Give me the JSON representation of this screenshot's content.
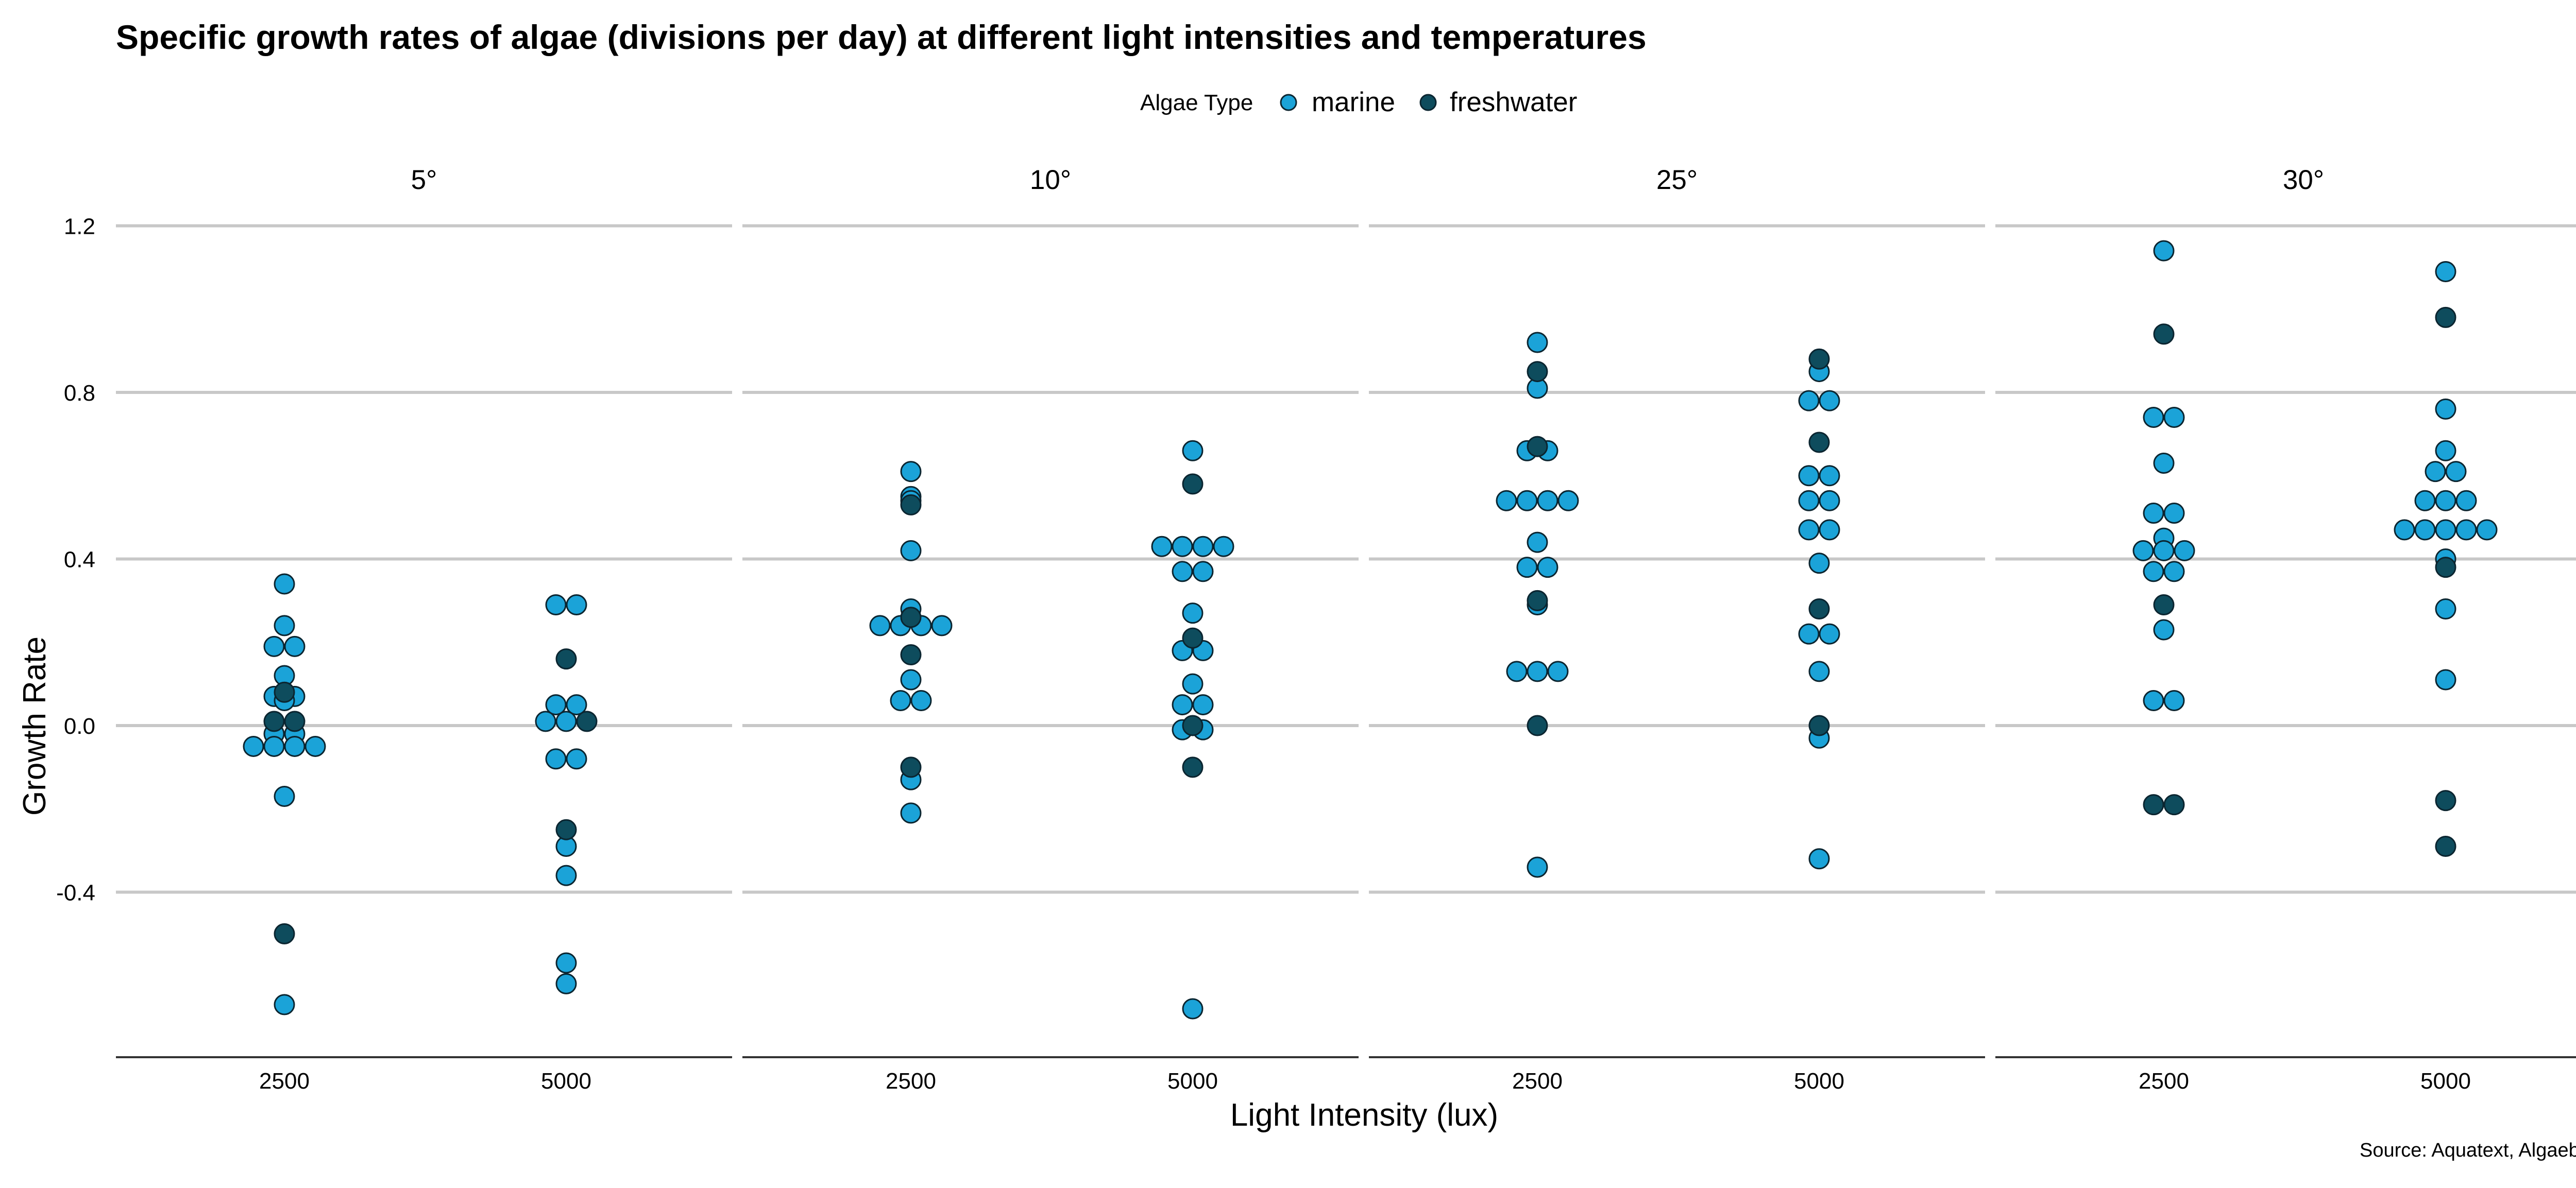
{
  "chart_data": {
    "type": "scatter",
    "title": "Specific growth rates of algae (divisions per day) at different light intensities and temperatures",
    "xlabel": "Light Intensity (lux)",
    "ylabel": "Growth Rate",
    "caption": "Source: Aquatext, Algaebase",
    "legend": {
      "title": "Algae Type",
      "position": "top",
      "entries": [
        "marine",
        "freshwater"
      ],
      "colors": {
        "marine": "#1ba3d8",
        "freshwater": "#0e4c5d"
      }
    },
    "ylim": [
      -0.8,
      1.2
    ],
    "y_ticks": [
      -0.4,
      0.0,
      0.4,
      0.8,
      1.2
    ],
    "y_tick_labels": [
      "-0.4",
      "0.0",
      "0.4",
      "0.8",
      "1.2"
    ],
    "x_categories": [
      "2500",
      "5000"
    ],
    "grid": true,
    "facets": [
      {
        "label": "5°",
        "groups": [
          {
            "x": "2500",
            "marine": [
              0.34,
              0.24,
              0.19,
              0.19,
              0.12,
              0.07,
              0.07,
              0.06,
              -0.02,
              -0.02,
              -0.05,
              -0.05,
              -0.05,
              -0.05,
              -0.17,
              -0.67
            ],
            "freshwater": [
              0.08,
              0.01,
              0.01,
              -0.5
            ]
          },
          {
            "x": "5000",
            "marine": [
              0.29,
              0.29,
              0.05,
              0.05,
              0.01,
              0.01,
              -0.08,
              -0.08,
              -0.29,
              -0.36,
              -0.57,
              -0.62
            ],
            "freshwater": [
              0.16,
              0.01,
              -0.25
            ]
          }
        ]
      },
      {
        "label": "10°",
        "groups": [
          {
            "x": "2500",
            "marine": [
              0.61,
              0.55,
              0.54,
              0.42,
              0.28,
              0.24,
              0.24,
              0.24,
              0.24,
              0.11,
              0.06,
              0.06,
              -0.13,
              -0.21
            ],
            "freshwater": [
              0.53,
              0.26,
              0.17,
              -0.1
            ]
          },
          {
            "x": "5000",
            "marine": [
              0.66,
              0.43,
              0.43,
              0.43,
              0.43,
              0.37,
              0.37,
              0.27,
              0.18,
              0.18,
              0.1,
              0.05,
              0.05,
              -0.01,
              -0.01,
              -0.68
            ],
            "freshwater": [
              0.58,
              0.21,
              0.0,
              -0.1
            ]
          }
        ]
      },
      {
        "label": "25°",
        "groups": [
          {
            "x": "2500",
            "marine": [
              0.92,
              0.81,
              0.66,
              0.66,
              0.54,
              0.54,
              0.54,
              0.54,
              0.44,
              0.38,
              0.38,
              0.29,
              0.13,
              0.13,
              0.13,
              -0.34
            ],
            "freshwater": [
              0.85,
              0.67,
              0.3,
              0.0
            ]
          },
          {
            "x": "5000",
            "marine": [
              0.85,
              0.78,
              0.78,
              0.6,
              0.6,
              0.54,
              0.54,
              0.47,
              0.47,
              0.39,
              0.22,
              0.22,
              0.13,
              -0.03,
              -0.32
            ],
            "freshwater": [
              0.88,
              0.68,
              0.28,
              0.0
            ]
          }
        ]
      },
      {
        "label": "30°",
        "groups": [
          {
            "x": "2500",
            "marine": [
              1.14,
              0.74,
              0.74,
              0.63,
              0.51,
              0.51,
              0.45,
              0.42,
              0.42,
              0.42,
              0.37,
              0.37,
              0.23,
              0.06,
              0.06
            ],
            "freshwater": [
              0.94,
              0.29,
              -0.19,
              -0.19
            ]
          },
          {
            "x": "5000",
            "marine": [
              1.09,
              0.76,
              0.66,
              0.61,
              0.61,
              0.54,
              0.54,
              0.54,
              0.47,
              0.47,
              0.47,
              0.47,
              0.47,
              0.4,
              0.28,
              0.11
            ],
            "freshwater": [
              0.98,
              0.38,
              -0.18,
              -0.29
            ]
          }
        ]
      }
    ]
  }
}
